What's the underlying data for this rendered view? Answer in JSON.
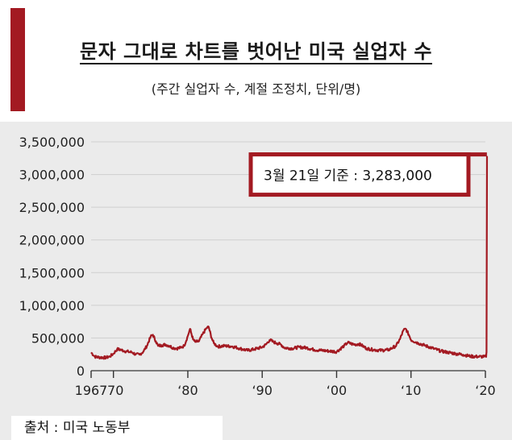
{
  "title": "문자 그대로 차트를 벗어난 미국 실업자 수",
  "subtitle": "(주간 실업자 수, 계절 조정치, 단위/명)",
  "source": "출처 :  미국 노동부",
  "colors": {
    "line": "#a31a22",
    "accent": "#a31a22",
    "grid": "#cfcfcf",
    "background": "#ebebeb"
  },
  "chart_data": {
    "type": "line",
    "title": "문자 그대로 차트를 벗어난 미국 실업자 수",
    "subtitle": "(주간 실업자 수, 계절 조정치, 단위/명)",
    "xlabel": "",
    "ylabel": "",
    "xlim": [
      1967,
      2020
    ],
    "ylim": [
      0,
      3500000
    ],
    "grid": true,
    "y_ticks": [
      0,
      500000,
      1000000,
      1500000,
      2000000,
      2500000,
      3000000,
      3500000
    ],
    "y_tick_labels": [
      "0",
      "500,000",
      "1,000,000",
      "1,500,000",
      "2,000,000",
      "2,500,000",
      "3,000,000",
      "3,500,000"
    ],
    "x_ticks": [
      1967,
      1970,
      1980,
      1990,
      2000,
      2010,
      2020
    ],
    "x_tick_labels": [
      "1967",
      "‘70",
      "‘80",
      "‘90",
      "‘00",
      "‘10",
      "‘20"
    ],
    "annotation": {
      "text": "3월 21일 기준 :  3,283,000",
      "x": 2020.2,
      "y": 3283000
    },
    "series": [
      {
        "points": [
          [
            1967.0,
            280000
          ],
          [
            1967.5,
            215000
          ],
          [
            1968.0,
            205000
          ],
          [
            1969.0,
            200000
          ],
          [
            1969.5,
            215000
          ],
          [
            1970.0,
            260000
          ],
          [
            1970.5,
            330000
          ],
          [
            1971.0,
            320000
          ],
          [
            1971.5,
            300000
          ],
          [
            1972.0,
            290000
          ],
          [
            1972.5,
            280000
          ],
          [
            1973.0,
            250000
          ],
          [
            1973.5,
            245000
          ],
          [
            1974.0,
            290000
          ],
          [
            1974.5,
            380000
          ],
          [
            1975.0,
            520000
          ],
          [
            1975.3,
            550000
          ],
          [
            1975.7,
            450000
          ],
          [
            1976.0,
            380000
          ],
          [
            1976.5,
            390000
          ],
          [
            1977.0,
            400000
          ],
          [
            1977.5,
            380000
          ],
          [
            1978.0,
            350000
          ],
          [
            1978.5,
            340000
          ],
          [
            1979.0,
            350000
          ],
          [
            1979.5,
            380000
          ],
          [
            1980.0,
            530000
          ],
          [
            1980.3,
            640000
          ],
          [
            1980.7,
            480000
          ],
          [
            1981.0,
            440000
          ],
          [
            1981.5,
            450000
          ],
          [
            1982.0,
            560000
          ],
          [
            1982.5,
            650000
          ],
          [
            1982.8,
            670000
          ],
          [
            1983.2,
            500000
          ],
          [
            1983.5,
            420000
          ],
          [
            1984.0,
            370000
          ],
          [
            1985.0,
            380000
          ],
          [
            1986.0,
            370000
          ],
          [
            1987.0,
            340000
          ],
          [
            1988.0,
            310000
          ],
          [
            1989.0,
            330000
          ],
          [
            1990.0,
            360000
          ],
          [
            1990.5,
            400000
          ],
          [
            1991.0,
            470000
          ],
          [
            1991.5,
            440000
          ],
          [
            1992.0,
            420000
          ],
          [
            1992.5,
            400000
          ],
          [
            1993.0,
            350000
          ],
          [
            1994.0,
            340000
          ],
          [
            1995.0,
            360000
          ],
          [
            1996.0,
            350000
          ],
          [
            1997.0,
            320000
          ],
          [
            1998.0,
            310000
          ],
          [
            1999.0,
            300000
          ],
          [
            2000.0,
            290000
          ],
          [
            2001.0,
            380000
          ],
          [
            2001.5,
            430000
          ],
          [
            2002.0,
            410000
          ],
          [
            2002.5,
            400000
          ],
          [
            2003.0,
            410000
          ],
          [
            2003.5,
            380000
          ],
          [
            2004.0,
            340000
          ],
          [
            2005.0,
            320000
          ],
          [
            2006.0,
            310000
          ],
          [
            2007.0,
            320000
          ],
          [
            2008.0,
            380000
          ],
          [
            2008.5,
            480000
          ],
          [
            2009.0,
            620000
          ],
          [
            2009.3,
            640000
          ],
          [
            2009.7,
            550000
          ],
          [
            2010.0,
            470000
          ],
          [
            2011.0,
            420000
          ],
          [
            2012.0,
            380000
          ],
          [
            2013.0,
            340000
          ],
          [
            2014.0,
            300000
          ],
          [
            2015.0,
            280000
          ],
          [
            2016.0,
            260000
          ],
          [
            2017.0,
            245000
          ],
          [
            2018.0,
            220000
          ],
          [
            2019.0,
            215000
          ],
          [
            2019.8,
            215000
          ],
          [
            2020.1,
            211000
          ],
          [
            2020.15,
            281000
          ],
          [
            2020.22,
            3283000
          ]
        ]
      }
    ]
  }
}
